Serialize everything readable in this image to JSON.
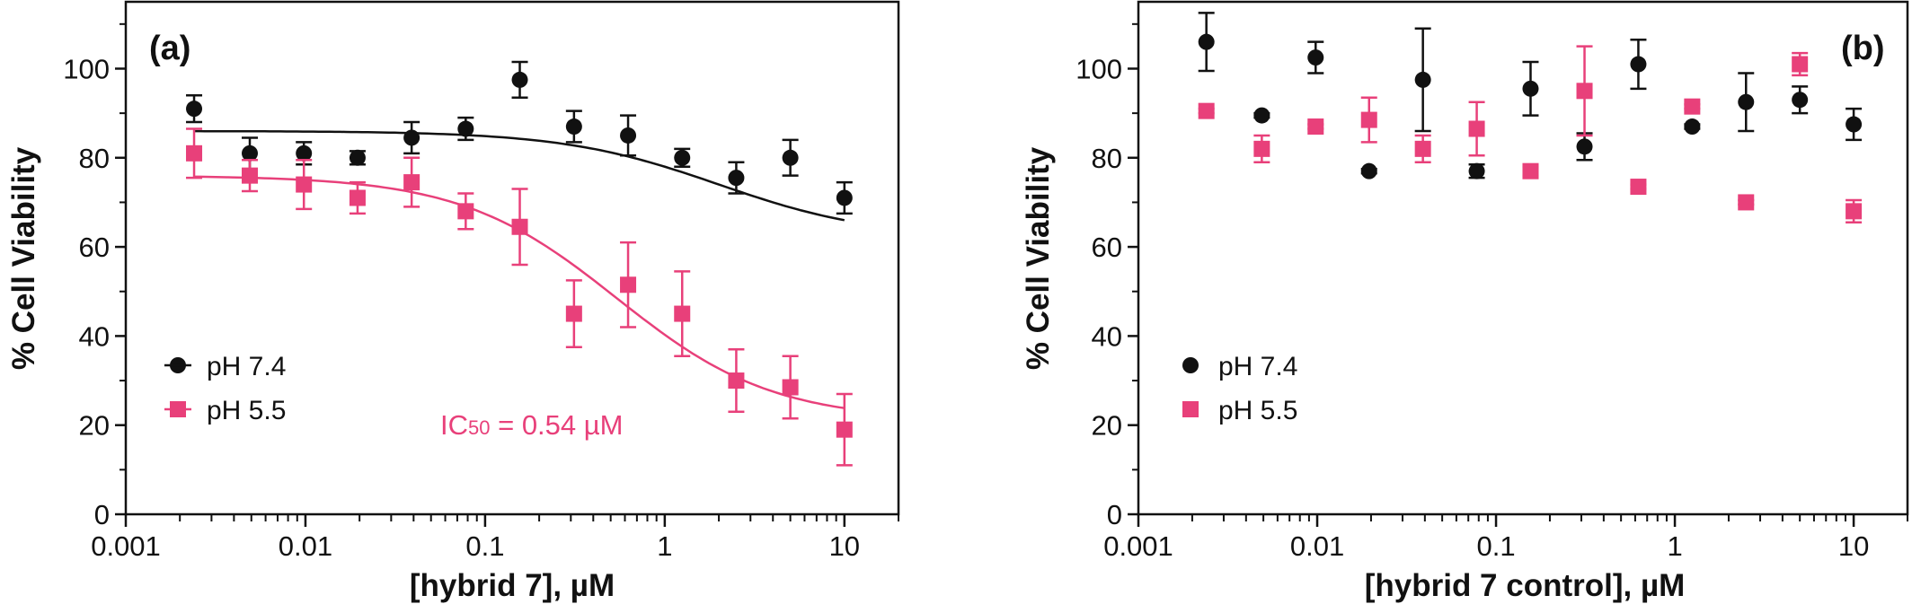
{
  "colors": {
    "black_series": "#111111",
    "pink_series": "#e8407a",
    "axis": "#111111",
    "background": "#ffffff"
  },
  "chart_data": [
    {
      "type": "scatter",
      "panel_label": "(a)",
      "xlabel": "[hybrid 7], µM",
      "ylabel": "% Cell Viability",
      "xscale": "log",
      "xlim": [
        0.001,
        20
      ],
      "ylim": [
        0,
        115
      ],
      "x_tick_values": [
        0.001,
        0.01,
        0.1,
        1,
        10
      ],
      "x_tick_labels": [
        "0.001",
        "0.01",
        "0.1",
        "1",
        "10"
      ],
      "y_tick_values": [
        0,
        20,
        40,
        60,
        80,
        100
      ],
      "y_tick_labels": [
        "0",
        "20",
        "40",
        "60",
        "80",
        "100"
      ],
      "grid": false,
      "legend_position": "bottom-left",
      "annotation": {
        "prefix": "IC",
        "subscript": "50",
        "suffix": " = 0.54 µM"
      },
      "series": [
        {
          "name": "pH 7.4",
          "marker": "circle",
          "color": "#111111",
          "x": [
            0.0024,
            0.0049,
            0.0098,
            0.0195,
            0.039,
            0.078,
            0.156,
            0.3125,
            0.625,
            1.25,
            2.5,
            5,
            10
          ],
          "y": [
            91,
            81,
            81,
            80,
            84.5,
            86.5,
            97.5,
            87,
            85,
            80,
            75.5,
            80,
            71
          ],
          "err": [
            3,
            3.5,
            2.5,
            1.5,
            3.5,
            2.5,
            4,
            3.5,
            4.5,
            2,
            3.5,
            4,
            3.5
          ],
          "fit": {
            "top": 86,
            "bottom": 62,
            "ec50": 2.0,
            "hill": 1
          }
        },
        {
          "name": "pH 5.5",
          "marker": "square",
          "color": "#e8407a",
          "x": [
            0.0024,
            0.0049,
            0.0098,
            0.0195,
            0.039,
            0.078,
            0.156,
            0.3125,
            0.625,
            1.25,
            2.5,
            5,
            10
          ],
          "y": [
            81,
            76,
            74,
            71,
            74.5,
            68,
            64.5,
            45,
            51.5,
            45,
            30,
            28.5,
            19
          ],
          "err": [
            5.5,
            3.5,
            5.5,
            3.5,
            5.5,
            4,
            8.5,
            7.5,
            9.5,
            9.5,
            7,
            7,
            8
          ],
          "fit": {
            "top": 76,
            "bottom": 21,
            "ec50": 0.54,
            "hill": 1
          }
        }
      ]
    },
    {
      "type": "scatter",
      "panel_label": "(b)",
      "xlabel": "[hybrid 7 control], µM",
      "ylabel": "% Cell Viability",
      "xscale": "log",
      "xlim": [
        0.001,
        20
      ],
      "ylim": [
        0,
        115
      ],
      "x_tick_values": [
        0.001,
        0.01,
        0.1,
        1,
        10
      ],
      "x_tick_labels": [
        "0.001",
        "0.01",
        "0.1",
        "1",
        "10"
      ],
      "y_tick_values": [
        0,
        20,
        40,
        60,
        80,
        100
      ],
      "y_tick_labels": [
        "0",
        "20",
        "40",
        "60",
        "80",
        "100"
      ],
      "grid": false,
      "legend_position": "bottom-left",
      "series": [
        {
          "name": "pH 7.4",
          "marker": "circle",
          "color": "#111111",
          "x": [
            0.0024,
            0.0049,
            0.0098,
            0.0195,
            0.039,
            0.078,
            0.156,
            0.3125,
            0.625,
            1.25,
            2.5,
            5,
            10
          ],
          "y": [
            106,
            89.5,
            102.5,
            77,
            97.5,
            77,
            95.5,
            82.5,
            101,
            87,
            92.5,
            93,
            87.5
          ],
          "err": [
            6.5,
            0.5,
            3.5,
            0.5,
            11.5,
            1.5,
            6,
            3,
            5.5,
            0.5,
            6.5,
            3,
            3.5
          ]
        },
        {
          "name": "pH 5.5",
          "marker": "square",
          "color": "#e8407a",
          "x": [
            0.0024,
            0.0049,
            0.0098,
            0.0195,
            0.039,
            0.078,
            0.156,
            0.3125,
            0.625,
            1.25,
            2.5,
            5,
            10
          ],
          "y": [
            90.5,
            82,
            87,
            88.5,
            82,
            86.5,
            77,
            95,
            73.5,
            91.5,
            70,
            101,
            68
          ],
          "err": [
            0.5,
            3,
            0.5,
            5,
            3,
            6,
            1,
            10,
            0.5,
            0.5,
            0.5,
            2.5,
            2.5
          ]
        }
      ]
    }
  ]
}
